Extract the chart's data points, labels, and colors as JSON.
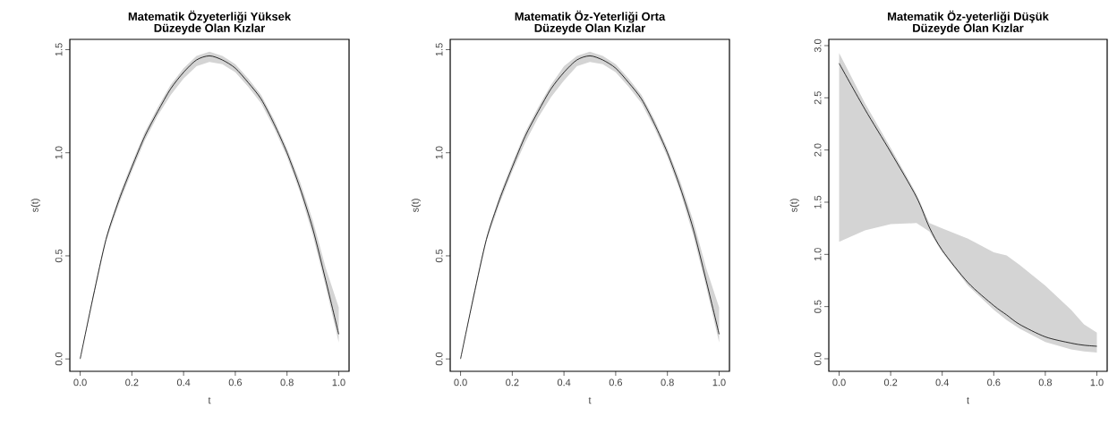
{
  "chart_data": [
    {
      "type": "line",
      "title": "Matematik Özyeterliği Yüksek\nDüzeyde Olan Kızlar",
      "xlabel": "t",
      "ylabel": "s(t)",
      "xlim": [
        -0.04,
        1.04
      ],
      "ylim": [
        -0.06,
        1.55
      ],
      "xticks": [
        {
          "value": 0,
          "label": "0.0"
        },
        {
          "value": 0.2,
          "label": "0.2"
        },
        {
          "value": 0.4,
          "label": "0.4"
        },
        {
          "value": 0.6,
          "label": "0.6"
        },
        {
          "value": 0.8,
          "label": "0.8"
        },
        {
          "value": 1,
          "label": "1.0"
        }
      ],
      "yticks": [
        {
          "value": 0,
          "label": "0.0"
        },
        {
          "value": 0.5,
          "label": "0.5"
        },
        {
          "value": 1,
          "label": "1.0"
        },
        {
          "value": 1.5,
          "label": "1.5"
        }
      ],
      "x": [
        0,
        0.05,
        0.1,
        0.15,
        0.2,
        0.25,
        0.3,
        0.35,
        0.4,
        0.45,
        0.5,
        0.55,
        0.6,
        0.65,
        0.7,
        0.75,
        0.8,
        0.85,
        0.9,
        0.95,
        1.0
      ],
      "series": [
        {
          "color": "#000000",
          "values": [
            0.0,
            0.3,
            0.58,
            0.77,
            0.93,
            1.08,
            1.2,
            1.31,
            1.39,
            1.45,
            1.47,
            1.45,
            1.41,
            1.34,
            1.26,
            1.14,
            1.0,
            0.83,
            0.63,
            0.38,
            0.12
          ],
          "lower": [
            0.0,
            0.29,
            0.57,
            0.75,
            0.91,
            1.06,
            1.18,
            1.28,
            1.36,
            1.42,
            1.44,
            1.43,
            1.39,
            1.32,
            1.24,
            1.12,
            0.98,
            0.81,
            0.6,
            0.35,
            0.08
          ],
          "upper": [
            0.0,
            0.31,
            0.59,
            0.79,
            0.95,
            1.1,
            1.22,
            1.33,
            1.41,
            1.47,
            1.49,
            1.47,
            1.43,
            1.36,
            1.28,
            1.16,
            1.02,
            0.86,
            0.67,
            0.44,
            0.25
          ]
        }
      ]
    },
    {
      "type": "line",
      "title": "Matematik Öz-Yeterliği Orta\nDüzeyde Olan Kızlar",
      "xlabel": "t",
      "ylabel": "s(t)",
      "xlim": [
        -0.04,
        1.04
      ],
      "ylim": [
        -0.06,
        1.55
      ],
      "xticks": [
        {
          "value": 0,
          "label": "0.0"
        },
        {
          "value": 0.2,
          "label": "0.2"
        },
        {
          "value": 0.4,
          "label": "0.4"
        },
        {
          "value": 0.6,
          "label": "0.6"
        },
        {
          "value": 0.8,
          "label": "0.8"
        },
        {
          "value": 1,
          "label": "1.0"
        }
      ],
      "yticks": [
        {
          "value": 0,
          "label": "0.0"
        },
        {
          "value": 0.5,
          "label": "0.5"
        },
        {
          "value": 1,
          "label": "1.0"
        },
        {
          "value": 1.5,
          "label": "1.5"
        }
      ],
      "x": [
        0,
        0.05,
        0.1,
        0.15,
        0.2,
        0.25,
        0.3,
        0.35,
        0.4,
        0.45,
        0.5,
        0.55,
        0.6,
        0.65,
        0.7,
        0.75,
        0.8,
        0.85,
        0.9,
        0.95,
        1.0
      ],
      "series": [
        {
          "color": "#000000",
          "values": [
            0.0,
            0.3,
            0.58,
            0.77,
            0.93,
            1.08,
            1.2,
            1.31,
            1.39,
            1.45,
            1.47,
            1.45,
            1.41,
            1.34,
            1.26,
            1.14,
            1.0,
            0.83,
            0.63,
            0.38,
            0.12
          ],
          "lower": [
            0.0,
            0.29,
            0.57,
            0.75,
            0.91,
            1.05,
            1.17,
            1.27,
            1.35,
            1.42,
            1.44,
            1.43,
            1.39,
            1.32,
            1.24,
            1.12,
            0.98,
            0.81,
            0.6,
            0.35,
            0.08
          ],
          "upper": [
            0.0,
            0.31,
            0.59,
            0.79,
            0.95,
            1.1,
            1.22,
            1.33,
            1.42,
            1.47,
            1.49,
            1.47,
            1.43,
            1.36,
            1.28,
            1.16,
            1.02,
            0.86,
            0.67,
            0.44,
            0.25
          ]
        }
      ]
    },
    {
      "type": "line",
      "title": "Matematik Öz-yeterliği Düşük\nDüzeyde Olan Kızlar",
      "xlabel": "t",
      "ylabel": "s(t)",
      "xlim": [
        -0.04,
        1.04
      ],
      "ylim": [
        -0.12,
        3.06
      ],
      "xticks": [
        {
          "value": 0,
          "label": "0.0"
        },
        {
          "value": 0.2,
          "label": "0.2"
        },
        {
          "value": 0.4,
          "label": "0.4"
        },
        {
          "value": 0.6,
          "label": "0.6"
        },
        {
          "value": 0.8,
          "label": "0.8"
        },
        {
          "value": 1,
          "label": "1.0"
        }
      ],
      "yticks": [
        {
          "value": 0,
          "label": "0.0"
        },
        {
          "value": 0.5,
          "label": "0.5"
        },
        {
          "value": 1,
          "label": "1.0"
        },
        {
          "value": 1.5,
          "label": "1.5"
        },
        {
          "value": 2,
          "label": "2.0"
        },
        {
          "value": 2.5,
          "label": "2.5"
        },
        {
          "value": 3,
          "label": "3.0"
        }
      ],
      "x": [
        0,
        0.1,
        0.2,
        0.3,
        0.35,
        0.4,
        0.5,
        0.6,
        0.65,
        0.7,
        0.8,
        0.9,
        0.95,
        1.0
      ],
      "series": [
        {
          "color": "#000000",
          "values": [
            2.83,
            2.39,
            1.98,
            1.55,
            1.26,
            1.04,
            0.73,
            0.51,
            0.42,
            0.33,
            0.21,
            0.15,
            0.13,
            0.12
          ],
          "lower": [
            1.12,
            1.23,
            1.29,
            1.3,
            1.22,
            1.02,
            0.7,
            0.47,
            0.37,
            0.29,
            0.16,
            0.09,
            0.07,
            0.06
          ],
          "upper": [
            2.93,
            2.45,
            2.02,
            1.58,
            1.3,
            1.25,
            1.15,
            1.02,
            0.99,
            0.9,
            0.7,
            0.47,
            0.33,
            0.25
          ]
        }
      ]
    }
  ]
}
